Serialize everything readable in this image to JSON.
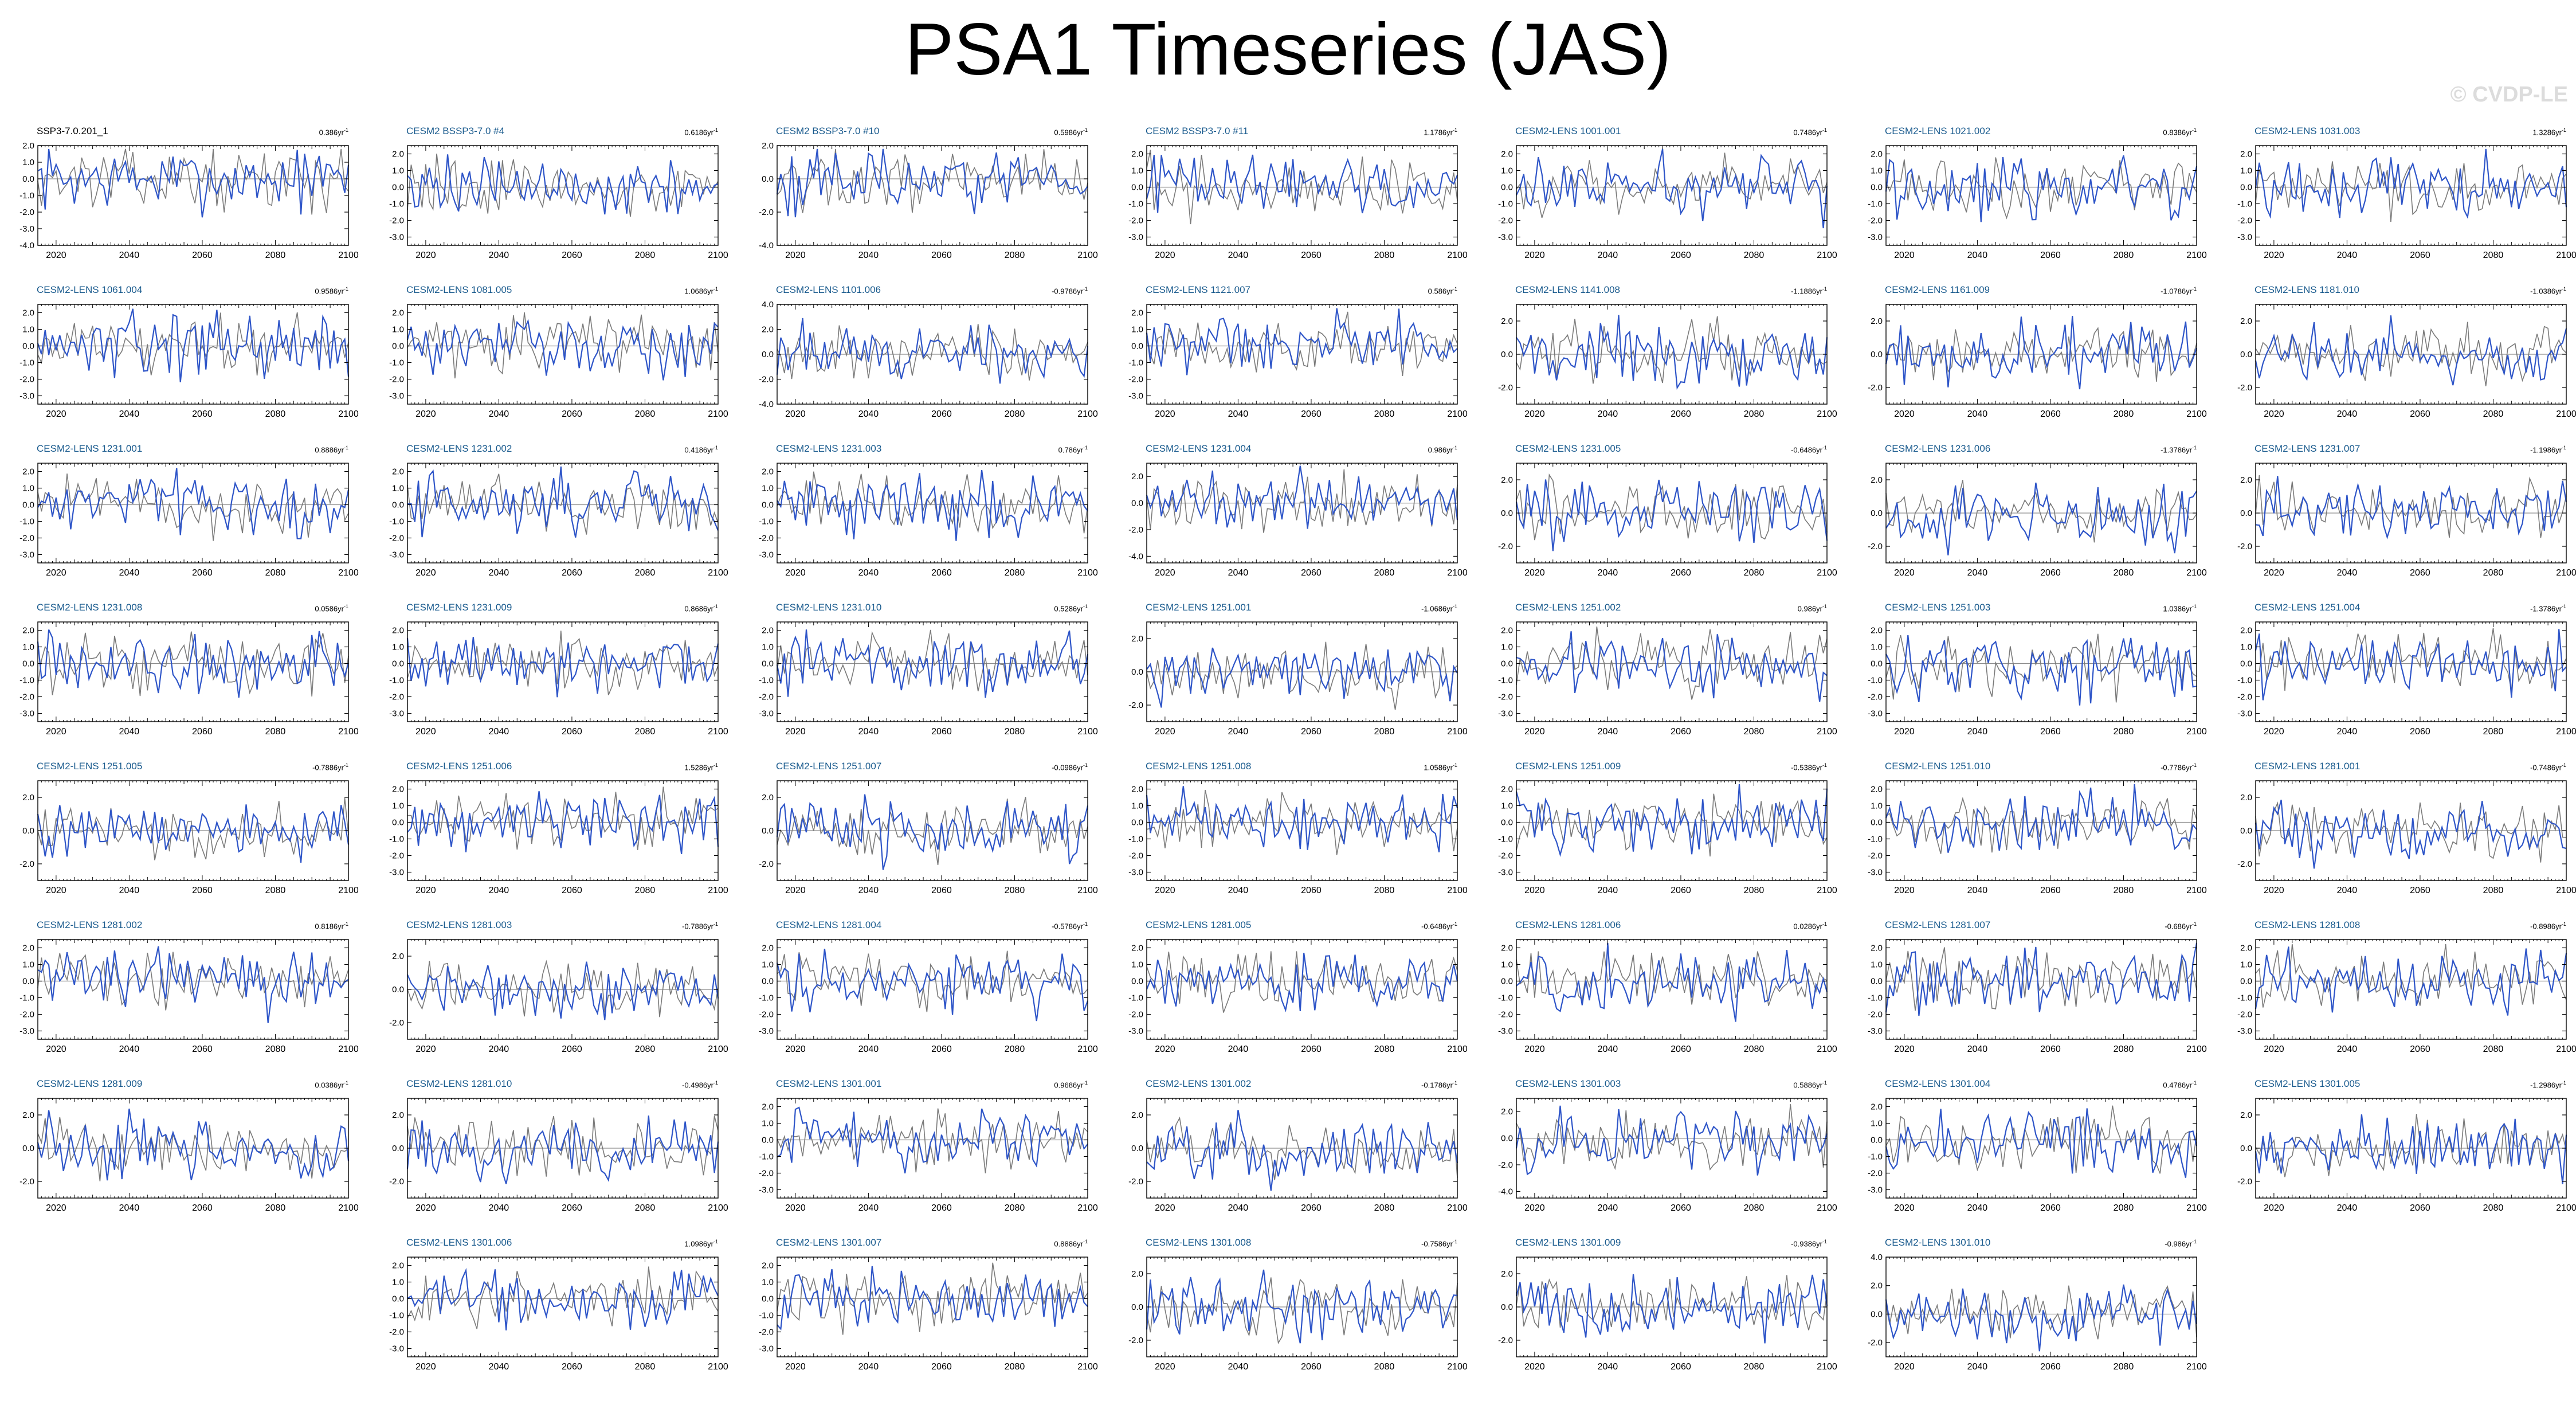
{
  "title": "PSA1 Timeseries (JAS)",
  "watermark": "© CVDP-LE",
  "colors": {
    "ensemble": "#2e55c8",
    "observed": "#7a7a7a",
    "zero_line": "#8c8c8c",
    "axis": "#000000",
    "title_first": "#000000",
    "title_other": "#1a5b8e"
  },
  "trend_unit": "86yr",
  "trend_unit_exp": "-1",
  "chart_data": {
    "type": "line",
    "xlim": [
      2015,
      2100
    ],
    "xticks": [
      2020,
      2040,
      2060,
      2080,
      2100
    ],
    "series_legend": [
      {
        "name": "",
        "color": "ensemble"
      },
      {
        "name": "",
        "color": "observed"
      }
    ],
    "panels": [
      {
        "title": "SSP3-7.0.201_1",
        "trend": "0.3",
        "ylim": [
          -4.0,
          2.0
        ],
        "yticks": [
          "2.0",
          "1.0",
          "0.0",
          "-1.0",
          "-2.0",
          "-3.0",
          "-4.0"
        ],
        "first": true
      },
      {
        "title": "CESM2 BSSP3-7.0 #4",
        "trend": "0.61",
        "ylim": [
          -3.5,
          2.5
        ],
        "yticks": [
          "2.0",
          "1.0",
          "0.0",
          "-1.0",
          "-2.0",
          "-3.0"
        ]
      },
      {
        "title": "CESM2 BSSP3-7.0 #10",
        "trend": "0.59",
        "ylim": [
          -4.0,
          2.0
        ],
        "yticks": [
          "2.0",
          "0.0",
          "-2.0",
          "-4.0"
        ]
      },
      {
        "title": "CESM2 BSSP3-7.0 #11",
        "trend": "1.17",
        "ylim": [
          -3.5,
          2.5
        ],
        "yticks": [
          "2.0",
          "1.0",
          "0.0",
          "-1.0",
          "-2.0",
          "-3.0"
        ]
      },
      {
        "title": "CESM2-LENS 1001.001",
        "trend": "0.74",
        "ylim": [
          -3.5,
          2.5
        ],
        "yticks": [
          "2.0",
          "1.0",
          "0.0",
          "-1.0",
          "-2.0",
          "-3.0"
        ]
      },
      {
        "title": "CESM2-LENS 1021.002",
        "trend": "0.83",
        "ylim": [
          -3.5,
          2.5
        ],
        "yticks": [
          "2.0",
          "1.0",
          "0.0",
          "-1.0",
          "-2.0",
          "-3.0"
        ]
      },
      {
        "title": "CESM2-LENS 1031.003",
        "trend": "1.32",
        "ylim": [
          -3.5,
          2.5
        ],
        "yticks": [
          "2.0",
          "1.0",
          "0.0",
          "-1.0",
          "-2.0",
          "-3.0"
        ]
      },
      {
        "title": "CESM2-LENS 1061.004",
        "trend": "0.95",
        "ylim": [
          -3.5,
          2.5
        ],
        "yticks": [
          "2.0",
          "1.0",
          "0.0",
          "-1.0",
          "-2.0",
          "-3.0"
        ]
      },
      {
        "title": "CESM2-LENS 1081.005",
        "trend": "1.06",
        "ylim": [
          -3.5,
          2.5
        ],
        "yticks": [
          "2.0",
          "1.0",
          "0.0",
          "-1.0",
          "-2.0",
          "-3.0"
        ]
      },
      {
        "title": "CESM2-LENS 1101.006",
        "trend": "-0.97",
        "ylim": [
          -4.0,
          4.0
        ],
        "yticks": [
          "4.0",
          "2.0",
          "0.0",
          "-2.0",
          "-4.0"
        ]
      },
      {
        "title": "CESM2-LENS 1121.007",
        "trend": "0.5",
        "ylim": [
          -3.5,
          2.5
        ],
        "yticks": [
          "2.0",
          "1.0",
          "0.0",
          "-1.0",
          "-2.0",
          "-3.0"
        ]
      },
      {
        "title": "CESM2-LENS 1141.008",
        "trend": "-1.18",
        "ylim": [
          -3.0,
          3.0
        ],
        "yticks": [
          "2.0",
          "0.0",
          "-2.0"
        ]
      },
      {
        "title": "CESM2-LENS 1161.009",
        "trend": "-1.07",
        "ylim": [
          -3.0,
          3.0
        ],
        "yticks": [
          "2.0",
          "0.0",
          "-2.0"
        ]
      },
      {
        "title": "CESM2-LENS 1181.010",
        "trend": "-1.03",
        "ylim": [
          -3.0,
          3.0
        ],
        "yticks": [
          "2.0",
          "0.0",
          "-2.0"
        ]
      },
      {
        "title": "CESM2-LENS 1231.001",
        "trend": "0.88",
        "ylim": [
          -3.5,
          2.5
        ],
        "yticks": [
          "2.0",
          "1.0",
          "0.0",
          "-1.0",
          "-2.0",
          "-3.0"
        ]
      },
      {
        "title": "CESM2-LENS 1231.002",
        "trend": "0.41",
        "ylim": [
          -3.5,
          2.5
        ],
        "yticks": [
          "2.0",
          "1.0",
          "0.0",
          "-1.0",
          "-2.0",
          "-3.0"
        ]
      },
      {
        "title": "CESM2-LENS 1231.003",
        "trend": "0.7",
        "ylim": [
          -3.5,
          2.5
        ],
        "yticks": [
          "2.0",
          "1.0",
          "0.0",
          "-1.0",
          "-2.0",
          "-3.0"
        ]
      },
      {
        "title": "CESM2-LENS 1231.004",
        "trend": "0.9",
        "ylim": [
          -4.5,
          3.0
        ],
        "yticks": [
          "2.0",
          "0.0",
          "-2.0",
          "-4.0"
        ]
      },
      {
        "title": "CESM2-LENS 1231.005",
        "trend": "-0.64",
        "ylim": [
          -3.0,
          3.0
        ],
        "yticks": [
          "2.0",
          "0.0",
          "-2.0"
        ]
      },
      {
        "title": "CESM2-LENS 1231.006",
        "trend": "-1.37",
        "ylim": [
          -3.0,
          3.0
        ],
        "yticks": [
          "2.0",
          "0.0",
          "-2.0"
        ]
      },
      {
        "title": "CESM2-LENS 1231.007",
        "trend": "-1.19",
        "ylim": [
          -3.0,
          3.0
        ],
        "yticks": [
          "2.0",
          "0.0",
          "-2.0"
        ]
      },
      {
        "title": "CESM2-LENS 1231.008",
        "trend": "0.05",
        "ylim": [
          -3.5,
          2.5
        ],
        "yticks": [
          "2.0",
          "1.0",
          "0.0",
          "-1.0",
          "-2.0",
          "-3.0"
        ]
      },
      {
        "title": "CESM2-LENS 1231.009",
        "trend": "0.86",
        "ylim": [
          -3.5,
          2.5
        ],
        "yticks": [
          "2.0",
          "1.0",
          "0.0",
          "-1.0",
          "-2.0",
          "-3.0"
        ]
      },
      {
        "title": "CESM2-LENS 1231.010",
        "trend": "0.52",
        "ylim": [
          -3.5,
          2.5
        ],
        "yticks": [
          "2.0",
          "1.0",
          "0.0",
          "-1.0",
          "-2.0",
          "-3.0"
        ]
      },
      {
        "title": "CESM2-LENS 1251.001",
        "trend": "-1.06",
        "ylim": [
          -3.0,
          3.0
        ],
        "yticks": [
          "2.0",
          "0.0",
          "-2.0"
        ]
      },
      {
        "title": "CESM2-LENS 1251.002",
        "trend": "0.9",
        "ylim": [
          -3.5,
          2.5
        ],
        "yticks": [
          "2.0",
          "1.0",
          "0.0",
          "-1.0",
          "-2.0",
          "-3.0"
        ]
      },
      {
        "title": "CESM2-LENS 1251.003",
        "trend": "1.03",
        "ylim": [
          -3.5,
          2.5
        ],
        "yticks": [
          "2.0",
          "1.0",
          "0.0",
          "-1.0",
          "-2.0",
          "-3.0"
        ]
      },
      {
        "title": "CESM2-LENS 1251.004",
        "trend": "-1.37",
        "ylim": [
          -3.5,
          2.5
        ],
        "yticks": [
          "2.0",
          "1.0",
          "0.0",
          "-1.0",
          "-2.0",
          "-3.0"
        ]
      },
      {
        "title": "CESM2-LENS 1251.005",
        "trend": "-0.78",
        "ylim": [
          -3.0,
          3.0
        ],
        "yticks": [
          "2.0",
          "0.0",
          "-2.0"
        ]
      },
      {
        "title": "CESM2-LENS 1251.006",
        "trend": "1.52",
        "ylim": [
          -3.5,
          2.5
        ],
        "yticks": [
          "2.0",
          "1.0",
          "0.0",
          "-1.0",
          "-2.0",
          "-3.0"
        ]
      },
      {
        "title": "CESM2-LENS 1251.007",
        "trend": "-0.09",
        "ylim": [
          -3.0,
          3.0
        ],
        "yticks": [
          "2.0",
          "0.0",
          "-2.0"
        ]
      },
      {
        "title": "CESM2-LENS 1251.008",
        "trend": "1.05",
        "ylim": [
          -3.5,
          2.5
        ],
        "yticks": [
          "2.0",
          "1.0",
          "0.0",
          "-1.0",
          "-2.0",
          "-3.0"
        ]
      },
      {
        "title": "CESM2-LENS 1251.009",
        "trend": "-0.53",
        "ylim": [
          -3.5,
          2.5
        ],
        "yticks": [
          "2.0",
          "1.0",
          "0.0",
          "-1.0",
          "-2.0",
          "-3.0"
        ]
      },
      {
        "title": "CESM2-LENS 1251.010",
        "trend": "-0.77",
        "ylim": [
          -3.5,
          2.5
        ],
        "yticks": [
          "2.0",
          "1.0",
          "0.0",
          "-1.0",
          "-2.0",
          "-3.0"
        ]
      },
      {
        "title": "CESM2-LENS 1281.001",
        "trend": "-0.74",
        "ylim": [
          -3.0,
          3.0
        ],
        "yticks": [
          "2.0",
          "0.0",
          "-2.0"
        ]
      },
      {
        "title": "CESM2-LENS 1281.002",
        "trend": "0.81",
        "ylim": [
          -3.5,
          2.5
        ],
        "yticks": [
          "2.0",
          "1.0",
          "0.0",
          "-1.0",
          "-2.0",
          "-3.0"
        ]
      },
      {
        "title": "CESM2-LENS 1281.003",
        "trend": "-0.78",
        "ylim": [
          -3.0,
          3.0
        ],
        "yticks": [
          "2.0",
          "0.0",
          "-2.0"
        ]
      },
      {
        "title": "CESM2-LENS 1281.004",
        "trend": "-0.57",
        "ylim": [
          -3.5,
          2.5
        ],
        "yticks": [
          "2.0",
          "1.0",
          "0.0",
          "-1.0",
          "-2.0",
          "-3.0"
        ]
      },
      {
        "title": "CESM2-LENS 1281.005",
        "trend": "-0.64",
        "ylim": [
          -3.5,
          2.5
        ],
        "yticks": [
          "2.0",
          "1.0",
          "0.0",
          "-1.0",
          "-2.0",
          "-3.0"
        ]
      },
      {
        "title": "CESM2-LENS 1281.006",
        "trend": "0.02",
        "ylim": [
          -3.5,
          2.5
        ],
        "yticks": [
          "2.0",
          "1.0",
          "0.0",
          "-1.0",
          "-2.0",
          "-3.0"
        ]
      },
      {
        "title": "CESM2-LENS 1281.007",
        "trend": "-0.6",
        "ylim": [
          -3.5,
          2.5
        ],
        "yticks": [
          "2.0",
          "1.0",
          "0.0",
          "-1.0",
          "-2.0",
          "-3.0"
        ]
      },
      {
        "title": "CESM2-LENS 1281.008",
        "trend": "-0.89",
        "ylim": [
          -3.5,
          2.5
        ],
        "yticks": [
          "2.0",
          "1.0",
          "0.0",
          "-1.0",
          "-2.0",
          "-3.0"
        ]
      },
      {
        "title": "CESM2-LENS 1281.009",
        "trend": "0.03",
        "ylim": [
          -3.0,
          3.0
        ],
        "yticks": [
          "2.0",
          "0.0",
          "-2.0"
        ]
      },
      {
        "title": "CESM2-LENS 1281.010",
        "trend": "-0.49",
        "ylim": [
          -3.0,
          3.0
        ],
        "yticks": [
          "2.0",
          "0.0",
          "-2.0"
        ]
      },
      {
        "title": "CESM2-LENS 1301.001",
        "trend": "0.96",
        "ylim": [
          -3.5,
          2.5
        ],
        "yticks": [
          "2.0",
          "1.0",
          "0.0",
          "-1.0",
          "-2.0",
          "-3.0"
        ]
      },
      {
        "title": "CESM2-LENS 1301.002",
        "trend": "-0.17",
        "ylim": [
          -3.0,
          3.0
        ],
        "yticks": [
          "2.0",
          "0.0",
          "-2.0"
        ]
      },
      {
        "title": "CESM2-LENS 1301.003",
        "trend": "0.58",
        "ylim": [
          -4.5,
          3.0
        ],
        "yticks": [
          "2.0",
          "0.0",
          "-2.0",
          "-4.0"
        ]
      },
      {
        "title": "CESM2-LENS 1301.004",
        "trend": "0.47",
        "ylim": [
          -3.5,
          2.5
        ],
        "yticks": [
          "2.0",
          "1.0",
          "0.0",
          "-1.0",
          "-2.0",
          "-3.0"
        ]
      },
      {
        "title": "CESM2-LENS 1301.005",
        "trend": "-1.29",
        "ylim": [
          -3.0,
          3.0
        ],
        "yticks": [
          "2.0",
          "0.0",
          "-2.0"
        ]
      },
      {
        "title": "CESM2-LENS 1301.006",
        "trend": "1.09",
        "ylim": [
          -3.5,
          2.5
        ],
        "yticks": [
          "2.0",
          "1.0",
          "0.0",
          "-1.0",
          "-2.0",
          "-3.0"
        ],
        "col": 1
      },
      {
        "title": "CESM2-LENS 1301.007",
        "trend": "0.88",
        "ylim": [
          -3.5,
          2.5
        ],
        "yticks": [
          "2.0",
          "1.0",
          "0.0",
          "-1.0",
          "-2.0",
          "-3.0"
        ],
        "col": 2
      },
      {
        "title": "CESM2-LENS 1301.008",
        "trend": "-0.75",
        "ylim": [
          -3.0,
          3.0
        ],
        "yticks": [
          "2.0",
          "0.0",
          "-2.0"
        ],
        "col": 3
      },
      {
        "title": "CESM2-LENS 1301.009",
        "trend": "-0.93",
        "ylim": [
          -3.0,
          3.0
        ],
        "yticks": [
          "2.0",
          "0.0",
          "-2.0"
        ],
        "col": 4
      },
      {
        "title": "CESM2-LENS 1301.010",
        "trend": "-0.9",
        "ylim": [
          -3.0,
          4.0
        ],
        "yticks": [
          "4.0",
          "2.0",
          "0.0",
          "-2.0"
        ],
        "col": 5
      }
    ]
  }
}
